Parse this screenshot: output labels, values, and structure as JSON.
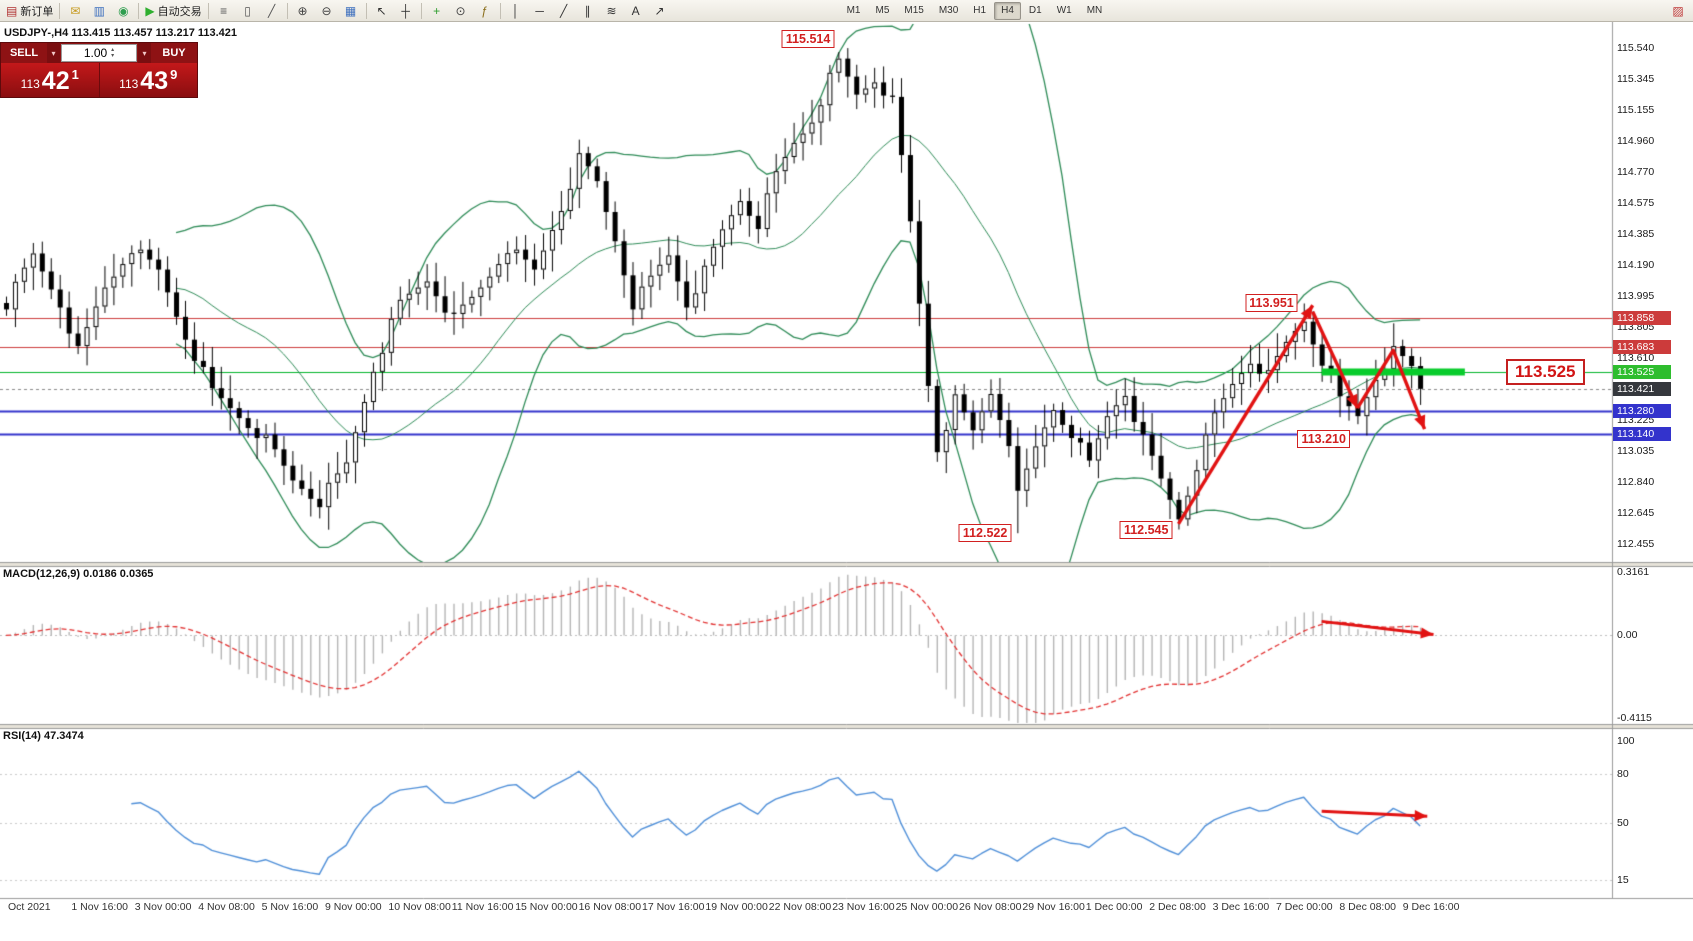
{
  "quote": {
    "symbol_line": "USDJPY-,H4 113.415 113.457 113.217 113.421"
  },
  "trade_panel": {
    "sell_label": "SELL",
    "buy_label": "BUY",
    "volume": "1.00",
    "sell_big": "113",
    "sell_main": "42",
    "sell_sup": "1",
    "buy_big": "113",
    "buy_main": "43",
    "buy_sup": "9"
  },
  "toolbar": {
    "items": [
      {
        "kind": "button",
        "name": "new-order-button",
        "glyph": "▤",
        "glyph_color": "#b03030",
        "label": "新订单"
      },
      {
        "kind": "sep"
      },
      {
        "kind": "button",
        "name": "mail-icon",
        "glyph": "✉",
        "glyph_color": "#c69a1e"
      },
      {
        "kind": "button",
        "name": "charts-icon",
        "glyph": "▥",
        "glyph_color": "#3d6fbe"
      },
      {
        "kind": "button",
        "name": "data-window-icon",
        "glyph": "◉",
        "glyph_color": "#2f9e4f"
      },
      {
        "kind": "sep"
      },
      {
        "kind": "button",
        "name": "autotrading-button",
        "glyph": "▶",
        "glyph_color": "#2faf2f",
        "label": "自动交易"
      },
      {
        "kind": "sep"
      },
      {
        "kind": "button",
        "name": "chart-bars-icon",
        "glyph": "≡",
        "glyph_color": "#555555"
      },
      {
        "kind": "button",
        "name": "chart-candles-icon",
        "glyph": "▯",
        "glyph_color": "#555555"
      },
      {
        "kind": "button",
        "name": "chart-line-icon",
        "glyph": "╱",
        "glyph_color": "#555555"
      },
      {
        "kind": "sep"
      },
      {
        "kind": "button",
        "name": "zoom-in-button",
        "glyph": "⊕",
        "glyph_color": "#444444"
      },
      {
        "kind": "button",
        "name": "zoom-out-button",
        "glyph": "⊖",
        "glyph_color": "#444444"
      },
      {
        "kind": "button",
        "name": "tile-windows-icon",
        "glyph": "▦",
        "glyph_color": "#3d6fbe"
      },
      {
        "kind": "sep"
      },
      {
        "kind": "button",
        "name": "cursor-icon",
        "glyph": "↖",
        "glyph_color": "#333333"
      },
      {
        "kind": "button",
        "name": "crosshair-icon",
        "glyph": "┼",
        "glyph_color": "#333333"
      },
      {
        "kind": "sep"
      },
      {
        "kind": "button",
        "name": "new-chart-button",
        "glyph": "+",
        "glyph_color": "#2f9e2f"
      },
      {
        "kind": "button",
        "name": "period-icon",
        "glyph": "⊙",
        "glyph_color": "#444444"
      },
      {
        "kind": "button",
        "name": "indicators-icon",
        "glyph": "ƒ",
        "glyph_color": "#8a6d1a"
      },
      {
        "kind": "sep"
      },
      {
        "kind": "button",
        "name": "vline-tool-icon",
        "glyph": "│",
        "glyph_color": "#333333"
      },
      {
        "kind": "button",
        "name": "hline-tool-icon",
        "glyph": "─",
        "glyph_color": "#333333"
      },
      {
        "kind": "button",
        "name": "trendline-tool-icon",
        "glyph": "╱",
        "glyph_color": "#333333"
      },
      {
        "kind": "button",
        "name": "channel-tool-icon",
        "glyph": "∥",
        "glyph_color": "#333333"
      },
      {
        "kind": "button",
        "name": "fibo-tool-icon",
        "glyph": "≋",
        "glyph_color": "#333333"
      },
      {
        "kind": "button",
        "name": "text-tool-icon",
        "glyph": "A",
        "glyph_color": "#333333"
      },
      {
        "kind": "button",
        "name": "arrows-tool-icon",
        "glyph": "↗",
        "glyph_color": "#333333"
      },
      {
        "kind": "space"
      },
      {
        "kind": "tf"
      },
      {
        "kind": "flex"
      },
      {
        "kind": "button",
        "name": "chart-profile-icon",
        "glyph": "▨",
        "glyph_color": "#c03a3a"
      }
    ],
    "timeframes": [
      "M1",
      "M5",
      "M15",
      "M30",
      "H1",
      "H4",
      "D1",
      "W1",
      "MN"
    ],
    "active_timeframe": "H4"
  },
  "price_axis": {
    "min": 112.455,
    "max": 115.54,
    "ticks": [
      "115.540",
      "115.345",
      "115.155",
      "114.960",
      "114.770",
      "114.575",
      "114.385",
      "114.190",
      "113.995",
      "113.805",
      "113.610",
      "113.225",
      "113.035",
      "112.840",
      "112.645",
      "112.455"
    ],
    "tags": [
      {
        "text": "113.858",
        "price": 113.858,
        "color": "red"
      },
      {
        "text": "113.683",
        "price": 113.683,
        "color": "red"
      },
      {
        "text": "113.525",
        "price": 113.525,
        "color": "green"
      },
      {
        "text": "113.421",
        "price": 113.421,
        "color": "dark"
      },
      {
        "text": "113.280",
        "price": 113.28,
        "color": "blue"
      },
      {
        "text": "113.140",
        "price": 113.14,
        "color": "blue"
      }
    ]
  },
  "hlines": [
    {
      "price": 113.858,
      "color": "#cc3b3b",
      "width": 1
    },
    {
      "price": 113.683,
      "color": "#cc3b3b",
      "width": 1
    },
    {
      "price": 113.525,
      "color": "#00b52a",
      "width": 1
    },
    {
      "price": 113.28,
      "color": "#3333cc",
      "width": 2
    },
    {
      "price": 113.14,
      "color": "#3333cc",
      "width": 2
    }
  ],
  "bid_line": {
    "price": 113.421
  },
  "green_segment": {
    "price": 113.525,
    "from_index": 147,
    "to_index": 163,
    "width": 7,
    "color": "#08cc2c"
  },
  "chart_data": {
    "type": "candlestick",
    "symbol": "USDJPY",
    "period": "H4",
    "bollinger_period": 20,
    "bollinger_dev": 2,
    "closes": [
      113.95,
      114.05,
      114.15,
      114.25,
      114.15,
      114.05,
      113.95,
      113.8,
      113.65,
      113.78,
      113.92,
      114.05,
      114.13,
      114.22,
      114.3,
      114.25,
      114.2,
      114.15,
      114.02,
      113.88,
      113.75,
      113.63,
      113.52,
      113.4,
      113.35,
      113.3,
      113.25,
      113.2,
      113.15,
      113.1,
      113.02,
      112.93,
      112.85,
      112.81,
      112.76,
      112.72,
      112.8,
      112.87,
      112.95,
      113.15,
      113.35,
      113.55,
      113.68,
      113.82,
      113.95,
      114.0,
      114.05,
      114.1,
      114.02,
      113.93,
      113.85,
      113.92,
      113.98,
      114.05,
      114.13,
      114.22,
      114.3,
      114.25,
      114.2,
      114.15,
      114.28,
      114.42,
      114.55,
      114.7,
      114.85,
      114.78,
      114.7,
      114.52,
      114.35,
      114.15,
      113.95,
      114.02,
      114.1,
      114.18,
      114.25,
      114.1,
      113.95,
      114.05,
      114.15,
      114.28,
      114.4,
      114.5,
      114.6,
      114.52,
      114.45,
      114.6,
      114.75,
      114.85,
      114.95,
      115.02,
      115.1,
      115.22,
      115.35,
      115.45,
      115.35,
      115.25,
      115.3,
      115.35,
      115.28,
      115.2,
      114.85,
      114.45,
      113.95,
      113.45,
      113.05,
      113.2,
      113.35,
      113.25,
      113.15,
      113.28,
      113.4,
      113.25,
      113.1,
      112.75,
      112.9,
      113.05,
      113.18,
      113.3,
      113.22,
      113.15,
      113.05,
      112.95,
      113.1,
      113.25,
      113.33,
      113.4,
      113.25,
      113.1,
      112.98,
      112.85,
      112.73,
      112.62,
      112.78,
      112.95,
      113.1,
      113.25,
      113.35,
      113.45,
      113.53,
      113.6,
      113.55,
      113.5,
      113.6,
      113.7,
      113.78,
      113.85,
      113.72,
      113.6,
      113.48,
      113.35,
      113.3,
      113.25,
      113.38,
      113.5,
      113.58,
      113.65,
      113.6,
      113.55,
      113.42
    ],
    "wick_overrides": {
      "64": {
        "high": 114.97
      },
      "93": {
        "high": 115.514
      },
      "113": {
        "low": 112.522
      },
      "131": {
        "low": 112.545
      },
      "145": {
        "high": 113.951
      }
    }
  },
  "annotations": {
    "price_labels": [
      {
        "text": "115.514",
        "index": 93,
        "price": 115.514,
        "placement": "above-left"
      },
      {
        "text": "113.951",
        "index": 145,
        "price": 113.951,
        "placement": "left"
      },
      {
        "text": "113.210",
        "index": 151,
        "price": 113.21,
        "placement": "below"
      },
      {
        "text": "112.522",
        "index": 113,
        "price": 112.522,
        "placement": "left"
      },
      {
        "text": "112.545",
        "index": 131,
        "price": 112.545,
        "placement": "left"
      }
    ],
    "big_label": {
      "text": "113.525",
      "price": 113.525
    },
    "trend_arrows": [
      {
        "points": [
          {
            "i": 131,
            "p": 112.58
          },
          {
            "i": 146,
            "p": 113.94
          }
        ]
      },
      {
        "points": [
          {
            "i": 146,
            "p": 113.9
          },
          {
            "i": 151,
            "p": 113.3
          }
        ]
      },
      {
        "points": [
          {
            "i": 151,
            "p": 113.3
          },
          {
            "i": 155,
            "p": 113.66
          },
          {
            "i": 158.5,
            "p": 113.17
          }
        ]
      }
    ],
    "arrow_color": "#e11212",
    "macd_arrow": {
      "points": [
        {
          "i": 147,
          "v": 0.07
        },
        {
          "i": 159.5,
          "v": 0.005
        }
      ]
    },
    "rsi_arrow": {
      "points": [
        {
          "i": 147,
          "v": 57
        },
        {
          "i": 158.8,
          "v": 54
        }
      ]
    }
  },
  "macd_panel": {
    "label": "MACD(12,26,9) 0.0186 0.0365",
    "fast": 12,
    "slow": 26,
    "signal": 9,
    "min": -0.4115,
    "max": 0.3161,
    "axis_labels": [
      {
        "text": "0.3161",
        "value": 0.3161
      },
      {
        "text": "0.00",
        "value": 0.0
      },
      {
        "text": "-0.4115",
        "value": -0.4115
      }
    ]
  },
  "rsi_panel": {
    "label": "RSI(14) 47.3474",
    "period": 14,
    "axis_labels": [
      {
        "text": "100",
        "value": 100,
        "line": false
      },
      {
        "text": "80",
        "value": 80,
        "line": true
      },
      {
        "text": "50",
        "value": 50,
        "line": true
      },
      {
        "text": "15",
        "value": 15,
        "line": true
      }
    ]
  },
  "time_axis": {
    "labels": [
      "Oct 2021",
      "1 Nov 16:00",
      "3 Nov 00:00",
      "4 Nov 08:00",
      "5 Nov 16:00",
      "9 Nov 00:00",
      "10 Nov 08:00",
      "11 Nov 16:00",
      "15 Nov 00:00",
      "16 Nov 08:00",
      "17 Nov 16:00",
      "19 Nov 00:00",
      "22 Nov 08:00",
      "23 Nov 16:00",
      "25 Nov 00:00",
      "26 Nov 08:00",
      "29 Nov 16:00",
      "1 Dec 00:00",
      "2 Dec 08:00",
      "3 Dec 16:00",
      "7 Dec 00:00",
      "8 Dec 08:00",
      "9 Dec 16:00"
    ]
  },
  "colors": {
    "band_green": "#2e8b57",
    "macd_hist": "#b5b5b5",
    "macd_signal": "#e23333",
    "rsi_line": "#4f8fd8",
    "tag_red": "#cc3b3b",
    "tag_green": "#2ebd2e",
    "tag_blue": "#3333cc",
    "tag_dark": "#35383d"
  }
}
